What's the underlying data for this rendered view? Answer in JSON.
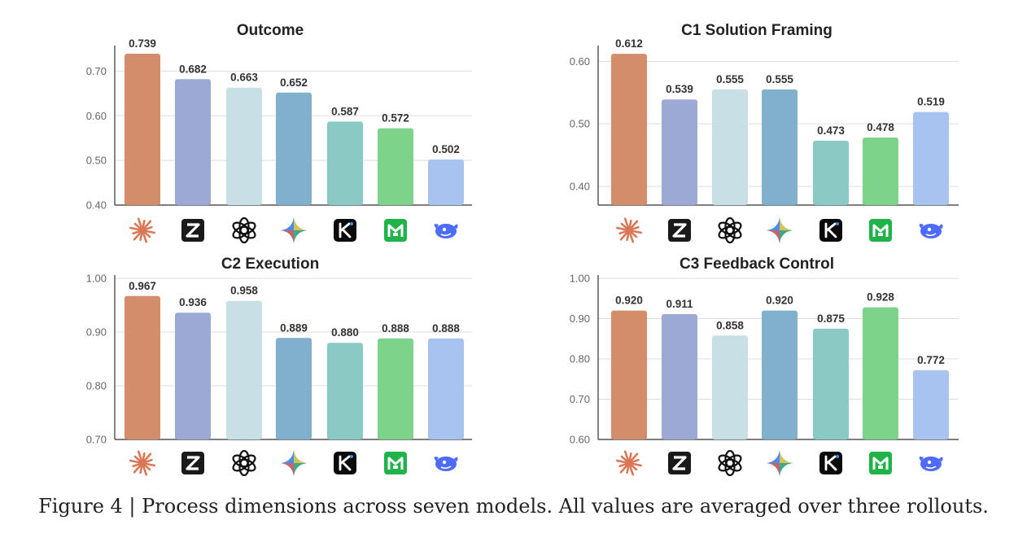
{
  "colors": {
    "claude": "#d48d6b",
    "glm": "#9ba9d4",
    "gpt": "#c8dfe6",
    "gemini": "#80b0cd",
    "kimi": "#8bc9c5",
    "minimax": "#7dd389",
    "deepseek": "#a8c3f0"
  },
  "model_icons": [
    "claude-icon",
    "zhipu-glm-icon",
    "openai-icon",
    "gemini-icon",
    "kimi-icon",
    "minimax-icon",
    "deepseek-icon"
  ],
  "caption": "Figure 4 | Process dimensions across seven models. All values are averaged over three rollouts.",
  "chart_data": [
    {
      "type": "bar",
      "title": "Outcome",
      "values": [
        0.739,
        0.682,
        0.663,
        0.652,
        0.587,
        0.572,
        0.502
      ],
      "labels": [
        "0.739",
        "0.682",
        "0.663",
        "0.652",
        "0.587",
        "0.572",
        "0.502"
      ],
      "ylim": [
        0.4,
        0.75
      ],
      "yticks": [
        0.4,
        0.5,
        0.6,
        0.7
      ],
      "ytick_labels": [
        "0.40",
        "0.50",
        "0.60",
        "0.70"
      ],
      "grid": true
    },
    {
      "type": "bar",
      "title": "C1 Solution Framing",
      "values": [
        0.612,
        0.539,
        0.555,
        0.555,
        0.473,
        0.478,
        0.519
      ],
      "labels": [
        "0.612",
        "0.539",
        "0.555",
        "0.555",
        "0.473",
        "0.478",
        "0.519"
      ],
      "ylim": [
        0.37,
        0.62
      ],
      "yticks": [
        0.4,
        0.5,
        0.6
      ],
      "ytick_labels": [
        "0.40",
        "0.50",
        "0.60"
      ],
      "grid": true
    },
    {
      "type": "bar",
      "title": "C2 Execution",
      "values": [
        0.967,
        0.936,
        0.958,
        0.889,
        0.88,
        0.888,
        0.888
      ],
      "labels": [
        "0.967",
        "0.936",
        "0.958",
        "0.889",
        "0.880",
        "0.888",
        "0.888"
      ],
      "ylim": [
        0.7,
        1.0
      ],
      "yticks": [
        0.7,
        0.8,
        0.9,
        1.0
      ],
      "ytick_labels": [
        "0.70",
        "0.80",
        "0.90",
        "1.00"
      ],
      "grid": true
    },
    {
      "type": "bar",
      "title": "C3 Feedback Control",
      "values": [
        0.92,
        0.911,
        0.858,
        0.92,
        0.875,
        0.928,
        0.772
      ],
      "labels": [
        "0.920",
        "0.911",
        "0.858",
        "0.920",
        "0.875",
        "0.928",
        "0.772"
      ],
      "ylim": [
        0.6,
        1.0
      ],
      "yticks": [
        0.6,
        0.7,
        0.8,
        0.9,
        1.0
      ],
      "ytick_labels": [
        "0.60",
        "0.70",
        "0.80",
        "0.90",
        "1.00"
      ],
      "grid": true
    }
  ]
}
